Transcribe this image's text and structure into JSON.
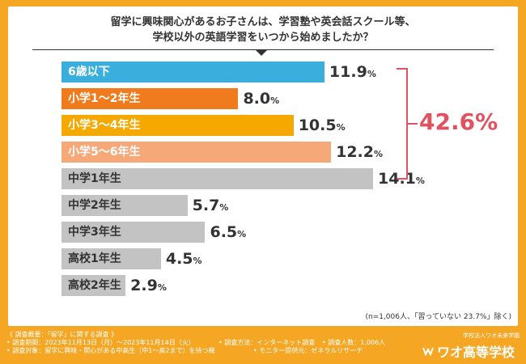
{
  "question": {
    "line1": "留学に興味関心があるお子さんは、学習塾や英会話スクール等、",
    "line2": "学校以外の英語学習をいつから始めましたか？"
  },
  "chart_data": {
    "type": "bar",
    "orientation": "horizontal",
    "unit": "%",
    "categories": [
      "6歳以下",
      "小学1〜2年生",
      "小学3〜4年生",
      "小学5〜6年生",
      "中学1年生",
      "中学2年生",
      "中学3年生",
      "高校1年生",
      "高校2年生"
    ],
    "values": [
      11.9,
      8.0,
      10.5,
      12.2,
      14.1,
      5.7,
      6.5,
      4.5,
      2.9
    ],
    "value_labels": [
      "11.9",
      "8.0",
      "10.5",
      "12.2",
      "14.1",
      "5.7",
      "6.5",
      "4.5",
      "2.9"
    ],
    "colors": [
      "#3aaedc",
      "#f07b1c",
      "#f5a800",
      "#f7a878",
      "#c3c3c3",
      "#c3c3c3",
      "#c3c3c3",
      "#c3c3c3",
      "#c3c3c3"
    ],
    "label_colors": [
      "#ffffff",
      "#ffffff",
      "#ffffff",
      "#ffffff",
      "#333333",
      "#333333",
      "#333333",
      "#333333",
      "#333333"
    ],
    "xlim": [
      0,
      15
    ],
    "bracket_total": "42.6%",
    "bracket_color": "#e05260"
  },
  "note": "(n=1,006人、「習っていない 23.7%」除く)",
  "footer": {
    "overview": "《 調査概要：「留学」に関する調査 》",
    "period": "• 調査期間：2023年11月13日（月）〜2023年11月14日（火）",
    "method": "• 調査方法：インターネット調査",
    "count": "• 調査人数：1,006人",
    "target": "• 調査対象：留学に興味・関心がある中高生（中1〜高2まで）を持つ親",
    "provider": "• モニター提供元：ゼネラルリサーチ"
  },
  "logo": {
    "sub": "学校法人ワオ未来学園",
    "main": "ワオ高等学校"
  }
}
